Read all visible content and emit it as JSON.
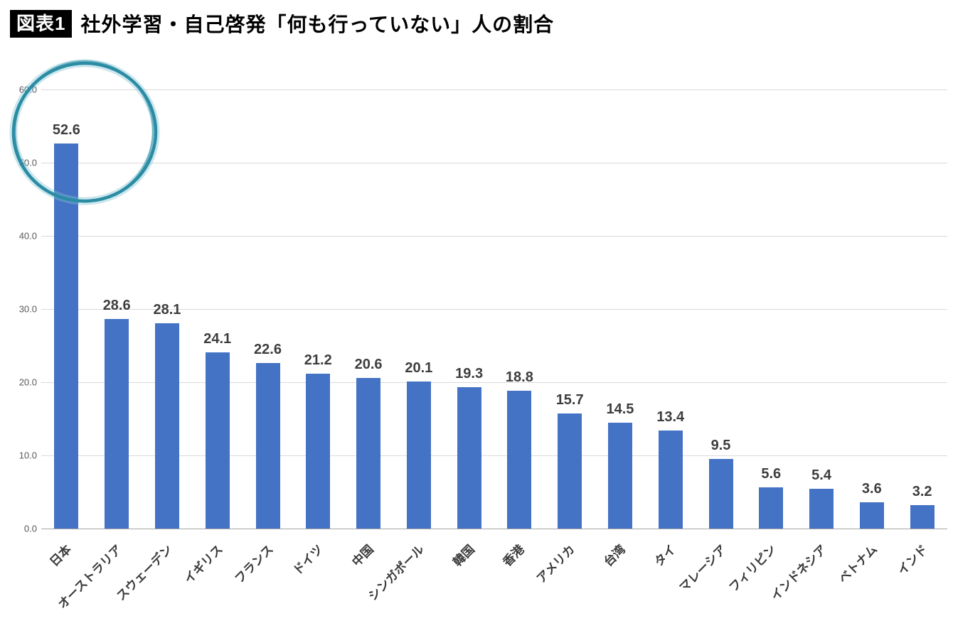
{
  "header": {
    "badge": "図表1",
    "title": "社外学習・自己啓発「何も行っていない」人の割合"
  },
  "chart_data": {
    "type": "bar",
    "title": "社外学習・自己啓発「何も行っていない」人の割合",
    "categories": [
      "日本",
      "オーストラリア",
      "スウェーデン",
      "イギリス",
      "フランス",
      "ドイツ",
      "中国",
      "シンガポール",
      "韓国",
      "香港",
      "アメリカ",
      "台湾",
      "タイ",
      "マレーシア",
      "フィリピン",
      "インドネシア",
      "ベトナム",
      "インド"
    ],
    "values": [
      52.6,
      28.6,
      28.1,
      24.1,
      22.6,
      21.2,
      20.6,
      20.1,
      19.3,
      18.8,
      15.7,
      14.5,
      13.4,
      9.5,
      5.6,
      5.4,
      3.6,
      3.2
    ],
    "value_labels": [
      "52.6",
      "28.6",
      "28.1",
      "24.1",
      "22.6",
      "21.2",
      "20.6",
      "20.1",
      "19.3",
      "18.8",
      "15.7",
      "14.5",
      "13.4",
      "9.5",
      "5.6",
      "5.4",
      "3.6",
      "3.2"
    ],
    "xlabel": "",
    "ylabel": "",
    "ylim": [
      0,
      60
    ],
    "yticks": [
      0,
      10,
      20,
      30,
      40,
      50,
      60
    ],
    "ytick_labels": [
      "0.0",
      "10.0",
      "20.0",
      "30.0",
      "40.0",
      "50.0",
      "60.0"
    ],
    "grid": true,
    "legend": "none",
    "colors": {
      "bar": "#4472C4",
      "gridline": "#D9D9D9",
      "baseline": "#A6A6A6",
      "tick_label": "#595959",
      "value_label": "#3D3D3D",
      "annotation_circle": "#2B8CA4"
    },
    "annotation": {
      "type": "hand-drawn-circle",
      "target_category": "日本",
      "color": "#2B8CA4"
    }
  }
}
